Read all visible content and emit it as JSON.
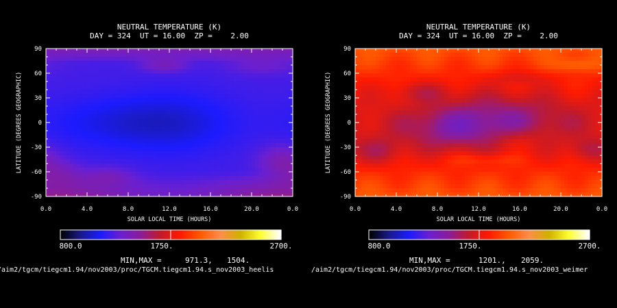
{
  "chart_data": [
    {
      "type": "heatmap",
      "title": "NEUTRAL TEMPERATURE (K)",
      "subtitle": "DAY = 324  UT = 16.00  ZP =    2.00",
      "xlabel": "SOLAR LOCAL TIME (HOURS)",
      "ylabel": "LATITUDE (DEGREES GEOGRAPHIC)",
      "x_range": [
        0,
        24
      ],
      "y_range": [
        -90,
        90
      ],
      "x_ticks": [
        "0.0",
        "4.0",
        "8.0",
        "12.0",
        "16.0",
        "20.0",
        "0.0"
      ],
      "y_ticks": [
        "90",
        "60",
        "30",
        "0",
        "-30",
        "-60",
        "-90"
      ],
      "colorbar": {
        "min_label": "800.0",
        "mid_label": "1750.",
        "max_label": "2700.",
        "min": 800,
        "max": 2700
      },
      "minmax_label": "MIN,MAX =",
      "min_value": "971.3,",
      "max_value": "1504.",
      "file_path": "/aim2/tgcm/tiegcm1.94/nov2003/proc/TGCM.tiegcm1.94.s_nov2003_heelis",
      "field_min": 971.3,
      "field_max": 1504,
      "field_kind": "heelis"
    },
    {
      "type": "heatmap",
      "title": "NEUTRAL TEMPERATURE (K)",
      "subtitle": "DAY = 324  UT = 16.00  ZP =    2.00",
      "xlabel": "SOLAR LOCAL TIME (HOURS)",
      "ylabel": "LATITUDE (DEGREES GEOGRAPHIC)",
      "x_range": [
        0,
        24
      ],
      "y_range": [
        -90,
        90
      ],
      "x_ticks": [
        "0.0",
        "4.0",
        "8.0",
        "12.0",
        "16.0",
        "20.0",
        "0.0"
      ],
      "y_ticks": [
        "90",
        "60",
        "30",
        "0",
        "-30",
        "-60",
        "-90"
      ],
      "colorbar": {
        "min_label": "800.0",
        "mid_label": "1750.",
        "max_label": "2700.",
        "min": 800,
        "max": 2700
      },
      "minmax_label": "MIN,MAX =",
      "min_value": "1201.,",
      "max_value": "2059.",
      "file_path": "/aim2/tgcm/tiegcm1.94/nov2003/proc/TGCM.tiegcm1.94.s_nov2003_weimer",
      "field_min": 1201,
      "field_max": 2059,
      "field_kind": "weimer"
    }
  ],
  "colors": {
    "background": "#000000",
    "foreground": "#ffffff",
    "colormap": [
      "#000000",
      "#1a1a8a",
      "#1b1bff",
      "#6a1fd0",
      "#8a1d9a",
      "#c21a2a",
      "#ff1a00",
      "#ff5a00",
      "#ff8c4a",
      "#d0b000",
      "#ffff30",
      "#ffffff"
    ]
  }
}
